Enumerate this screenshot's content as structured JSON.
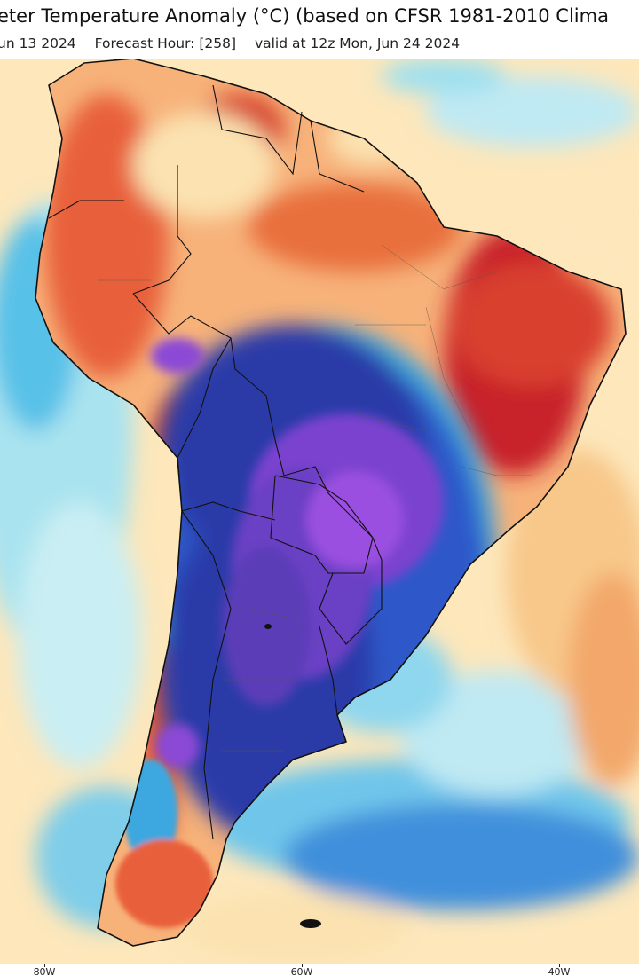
{
  "header": {
    "title": "eter Temperature Anomaly (°C) (based on CFSR 1981-2010 Clima",
    "run_label": "un 13 2024",
    "forecast_hour_label": "Forecast Hour: [258]",
    "valid_label": "valid at 12z Mon, Jun 24 2024"
  },
  "axis": {
    "lon_ticks": [
      "80W",
      "60W",
      "40W"
    ]
  },
  "colors": {
    "warm_strong": "#c8202a",
    "warm": "#e8603a",
    "warm_light": "#f7b27a",
    "neutral": "#fbe2b0",
    "cool_light": "#9fe0ef",
    "cool": "#3ea7df",
    "cold": "#2d59c9",
    "cold_strong": "#2b3aa8",
    "coldest": "#8b48d6"
  }
}
